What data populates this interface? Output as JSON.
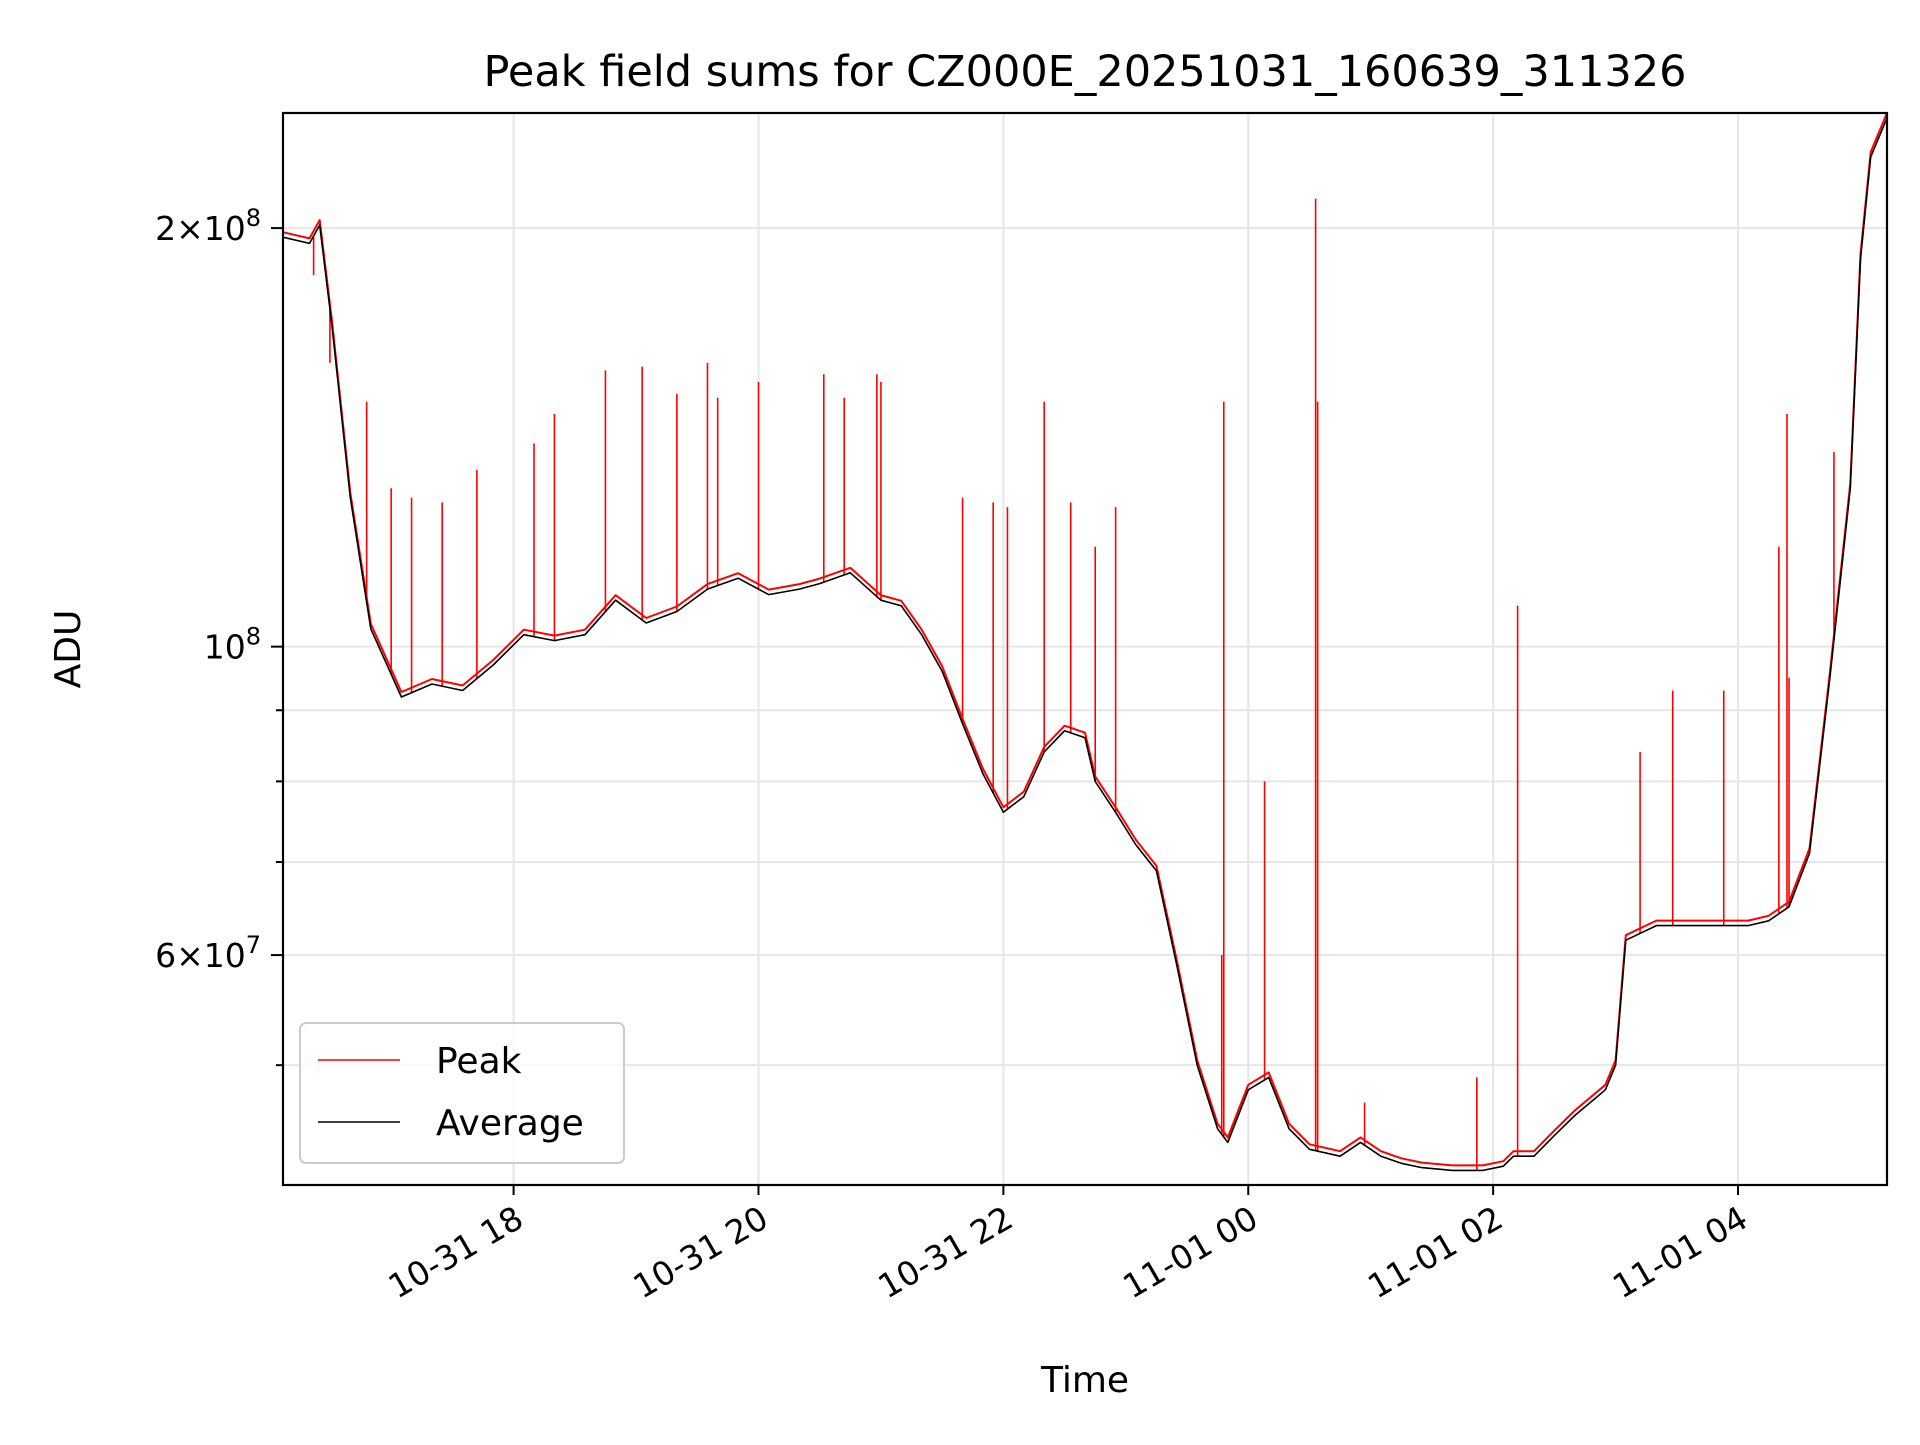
{
  "chart_data": {
    "type": "line",
    "title": "Peak field sums for CZ000E_20251031_160639_311326",
    "xlabel": "Time",
    "ylabel": "ADU",
    "y_scale": "log",
    "xlim": [
      "2025-10-31T16:07",
      "2025-11-01T05:13"
    ],
    "ylim": [
      41000000,
      242000000
    ],
    "x_ticks": [
      {
        "value": "2025-10-31T18:00",
        "label": "10-31 18"
      },
      {
        "value": "2025-10-31T20:00",
        "label": "10-31 20"
      },
      {
        "value": "2025-10-31T22:00",
        "label": "10-31 22"
      },
      {
        "value": "2025-11-01T00:00",
        "label": "11-01 00"
      },
      {
        "value": "2025-11-01T02:00",
        "label": "11-01 02"
      },
      {
        "value": "2025-11-01T04:00",
        "label": "11-01 04"
      }
    ],
    "y_ticks": [
      {
        "value": 200000000,
        "base": "2",
        "exponent": "8"
      },
      {
        "value": 100000000,
        "base": "",
        "exponent": "8"
      },
      {
        "value": 60000000,
        "base": "6",
        "exponent": "7"
      }
    ],
    "y_minor_ticks": [
      50000000,
      70000000,
      80000000,
      90000000
    ],
    "grid": true,
    "legend": {
      "placement": "lower-left"
    },
    "series": [
      {
        "name": "Average",
        "color": "#000000",
        "x": [
          "2025-10-31T16:07",
          "2025-10-31T16:20",
          "2025-10-31T16:25",
          "2025-10-31T16:31",
          "2025-10-31T16:40",
          "2025-10-31T16:50",
          "2025-10-31T17:05",
          "2025-10-31T17:20",
          "2025-10-31T17:35",
          "2025-10-31T17:50",
          "2025-10-31T18:05",
          "2025-10-31T18:20",
          "2025-10-31T18:35",
          "2025-10-31T18:50",
          "2025-10-31T19:05",
          "2025-10-31T19:20",
          "2025-10-31T19:35",
          "2025-10-31T19:50",
          "2025-10-31T20:05",
          "2025-10-31T20:20",
          "2025-10-31T20:30",
          "2025-10-31T20:45",
          "2025-10-31T21:00",
          "2025-10-31T21:10",
          "2025-10-31T21:20",
          "2025-10-31T21:30",
          "2025-10-31T21:40",
          "2025-10-31T21:50",
          "2025-10-31T22:00",
          "2025-10-31T22:10",
          "2025-10-31T22:20",
          "2025-10-31T22:30",
          "2025-10-31T22:40",
          "2025-10-31T22:45",
          "2025-10-31T22:55",
          "2025-10-31T23:05",
          "2025-10-31T23:15",
          "2025-10-31T23:25",
          "2025-10-31T23:35",
          "2025-10-31T23:45",
          "2025-10-31T23:50",
          "2025-11-01T00:00",
          "2025-11-01T00:10",
          "2025-11-01T00:20",
          "2025-11-01T00:30",
          "2025-11-01T00:45",
          "2025-11-01T00:55",
          "2025-11-01T01:05",
          "2025-11-01T01:15",
          "2025-11-01T01:25",
          "2025-11-01T01:40",
          "2025-11-01T01:55",
          "2025-11-01T02:05",
          "2025-11-01T02:10",
          "2025-11-01T02:20",
          "2025-11-01T02:30",
          "2025-11-01T02:40",
          "2025-11-01T02:55",
          "2025-11-01T03:00",
          "2025-11-01T03:05",
          "2025-11-01T03:20",
          "2025-11-01T03:35",
          "2025-11-01T03:50",
          "2025-11-01T04:05",
          "2025-11-01T04:15",
          "2025-11-01T04:25",
          "2025-11-01T04:35",
          "2025-11-01T04:45",
          "2025-11-01T04:55",
          "2025-11-01T05:00",
          "2025-11-01T05:05",
          "2025-11-01T05:13"
        ],
        "values": [
          197000000,
          195000000,
          201000000,
          170000000,
          128000000,
          103000000,
          92000000,
          94000000,
          93000000,
          97000000,
          102000000,
          101000000,
          102000000,
          108000000,
          104000000,
          106000000,
          110000000,
          112000000,
          109000000,
          110000000,
          111000000,
          113000000,
          108000000,
          107000000,
          102000000,
          96000000,
          88000000,
          81000000,
          76000000,
          78000000,
          84000000,
          87000000,
          86000000,
          80000000,
          76000000,
          72000000,
          69000000,
          59000000,
          50000000,
          45000000,
          44000000,
          48000000,
          49000000,
          45000000,
          43500000,
          43000000,
          44000000,
          43000000,
          42500000,
          42200000,
          42000000,
          42000000,
          42300000,
          43000000,
          43000000,
          44500000,
          46000000,
          48000000,
          50000000,
          61500000,
          63000000,
          63000000,
          63000000,
          63000000,
          63500000,
          65000000,
          71000000,
          95000000,
          130000000,
          190000000,
          225000000,
          240000000
        ]
      },
      {
        "name": "Peak",
        "color": "#ff0000",
        "x": [
          "2025-10-31T16:22",
          "2025-10-31T16:30",
          "2025-10-31T16:48",
          "2025-10-31T17:00",
          "2025-10-31T17:10",
          "2025-10-31T17:25",
          "2025-10-31T17:42",
          "2025-10-31T18:10",
          "2025-10-31T18:20",
          "2025-10-31T18:45",
          "2025-10-31T19:03",
          "2025-10-31T19:20",
          "2025-10-31T19:35",
          "2025-10-31T19:40",
          "2025-10-31T20:00",
          "2025-10-31T20:32",
          "2025-10-31T20:42",
          "2025-10-31T20:58",
          "2025-10-31T21:00",
          "2025-10-31T21:40",
          "2025-10-31T21:55",
          "2025-10-31T22:02",
          "2025-10-31T22:20",
          "2025-10-31T22:33",
          "2025-10-31T22:45",
          "2025-10-31T22:55",
          "2025-10-31T23:47",
          "2025-10-31T23:48",
          "2025-11-01T00:08",
          "2025-11-01T00:33",
          "2025-11-01T00:34",
          "2025-11-01T00:57",
          "2025-11-01T01:52",
          "2025-11-01T02:12",
          "2025-11-01T03:12",
          "2025-11-01T03:28",
          "2025-11-01T03:53",
          "2025-11-01T04:20",
          "2025-11-01T04:24",
          "2025-11-01T04:25",
          "2025-11-01T04:47"
        ],
        "values": [
          185000000,
          160000000,
          150000000,
          130000000,
          128000000,
          127000000,
          134000000,
          140000000,
          147000000,
          158000000,
          159000000,
          152000000,
          160000000,
          151000000,
          155000000,
          157000000,
          151000000,
          157000000,
          155000000,
          128000000,
          127000000,
          126000000,
          150000000,
          127000000,
          118000000,
          126000000,
          60000000,
          150000000,
          80000000,
          210000000,
          150000000,
          47000000,
          49000000,
          107000000,
          84000000,
          93000000,
          93000000,
          118000000,
          147000000,
          95000000,
          138000000
        ]
      }
    ]
  }
}
